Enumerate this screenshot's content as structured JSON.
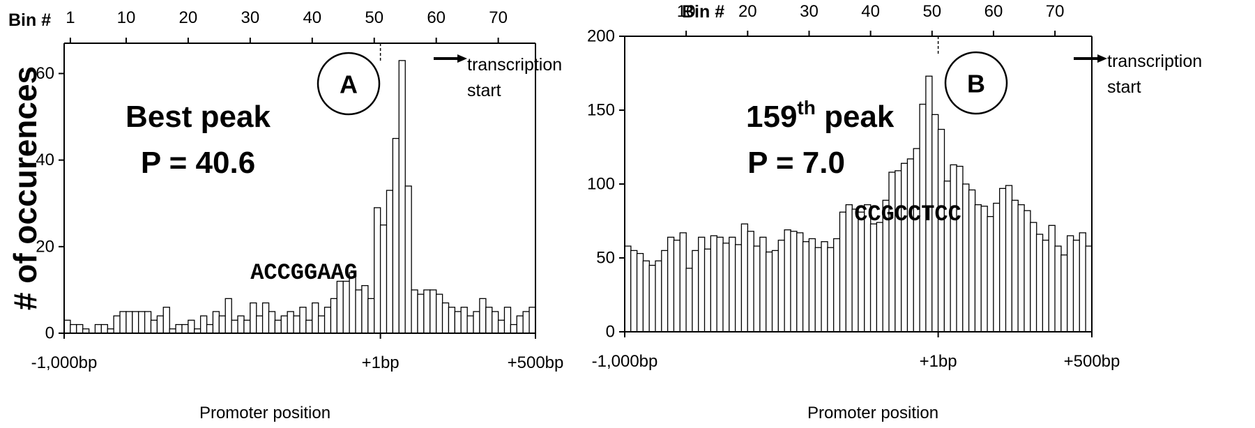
{
  "figure": {
    "ylabel": "# of occurences",
    "xlabel_center": "Promoter position",
    "bin_axis_label": "Bin #"
  },
  "chart_data": [
    {
      "type": "bar",
      "panel_label": "A",
      "peak_title": "Best peak",
      "peak_p": "P = 40.6",
      "motif": "ACCGGAAG",
      "annotation": [
        "transcription",
        "start"
      ],
      "ylabel": "# of occurences",
      "xlabel": "Promoter position",
      "x_tick_labels": [
        "-1,000bp",
        "+1bp",
        "+500bp"
      ],
      "x_tick_bins": [
        0,
        51,
        76
      ],
      "bin_ticks": [
        1,
        10,
        20,
        30,
        40,
        50,
        60,
        70
      ],
      "ylim": [
        0,
        67
      ],
      "yticks": [
        0,
        20,
        40,
        60
      ],
      "tss_bin": 51,
      "bins": [
        1,
        2,
        3,
        4,
        5,
        6,
        7,
        8,
        9,
        10,
        11,
        12,
        13,
        14,
        15,
        16,
        17,
        18,
        19,
        20,
        21,
        22,
        23,
        24,
        25,
        26,
        27,
        28,
        29,
        30,
        31,
        32,
        33,
        34,
        35,
        36,
        37,
        38,
        39,
        40,
        41,
        42,
        43,
        44,
        45,
        46,
        47,
        48,
        49,
        50,
        51,
        52,
        53,
        54,
        55,
        56,
        57,
        58,
        59,
        60,
        61,
        62,
        63,
        64,
        65,
        66,
        67,
        68,
        69,
        70,
        71,
        72,
        73,
        74,
        75,
        76
      ],
      "values": [
        3,
        2,
        2,
        1,
        0,
        2,
        2,
        1,
        4,
        5,
        5,
        5,
        5,
        5,
        3,
        4,
        6,
        1,
        2,
        2,
        3,
        1,
        4,
        2,
        5,
        4,
        8,
        3,
        4,
        3,
        7,
        4,
        7,
        5,
        3,
        4,
        5,
        4,
        6,
        3,
        7,
        4,
        6,
        8,
        12,
        12,
        14,
        10,
        11,
        8,
        29,
        25,
        33,
        45,
        63,
        34,
        10,
        9,
        10,
        10,
        9,
        7,
        6,
        5,
        6,
        4,
        5,
        8,
        6,
        5,
        3,
        6,
        2,
        4,
        5,
        6
      ]
    },
    {
      "type": "bar",
      "panel_label": "B",
      "peak_title_num": "159",
      "peak_title_sup": "th",
      "peak_title_rest": " peak",
      "peak_p": "P = 7.0",
      "motif": "CCGCCTCC",
      "annotation": [
        "transcription",
        "start"
      ],
      "ylabel": "# of occurences",
      "xlabel": "Promoter position",
      "x_tick_labels": [
        "-1,000bp",
        "+1bp",
        "+500bp"
      ],
      "x_tick_bins": [
        0,
        51,
        76
      ],
      "bin_ticks": [
        10,
        20,
        30,
        40,
        50,
        60,
        70
      ],
      "ylim": [
        0,
        200
      ],
      "yticks": [
        0,
        50,
        100,
        150,
        200
      ],
      "tss_bin": 51,
      "bins": [
        1,
        2,
        3,
        4,
        5,
        6,
        7,
        8,
        9,
        10,
        11,
        12,
        13,
        14,
        15,
        16,
        17,
        18,
        19,
        20,
        21,
        22,
        23,
        24,
        25,
        26,
        27,
        28,
        29,
        30,
        31,
        32,
        33,
        34,
        35,
        36,
        37,
        38,
        39,
        40,
        41,
        42,
        43,
        44,
        45,
        46,
        47,
        48,
        49,
        50,
        51,
        52,
        53,
        54,
        55,
        56,
        57,
        58,
        59,
        60,
        61,
        62,
        63,
        64,
        65,
        66,
        67,
        68,
        69,
        70,
        71,
        72,
        73,
        74,
        75,
        76
      ],
      "values": [
        58,
        55,
        53,
        48,
        45,
        48,
        55,
        64,
        62,
        67,
        43,
        55,
        64,
        56,
        65,
        64,
        60,
        64,
        59,
        73,
        68,
        58,
        64,
        54,
        55,
        62,
        69,
        68,
        67,
        61,
        63,
        57,
        61,
        57,
        63,
        81,
        86,
        83,
        81,
        86,
        73,
        74,
        89,
        108,
        109,
        114,
        117,
        124,
        154,
        173,
        147,
        137,
        102,
        113,
        112,
        100,
        96,
        86,
        85,
        78,
        87,
        97,
        99,
        89,
        86,
        82,
        74,
        66,
        62,
        72,
        58,
        52,
        65,
        62,
        67,
        58
      ]
    }
  ]
}
